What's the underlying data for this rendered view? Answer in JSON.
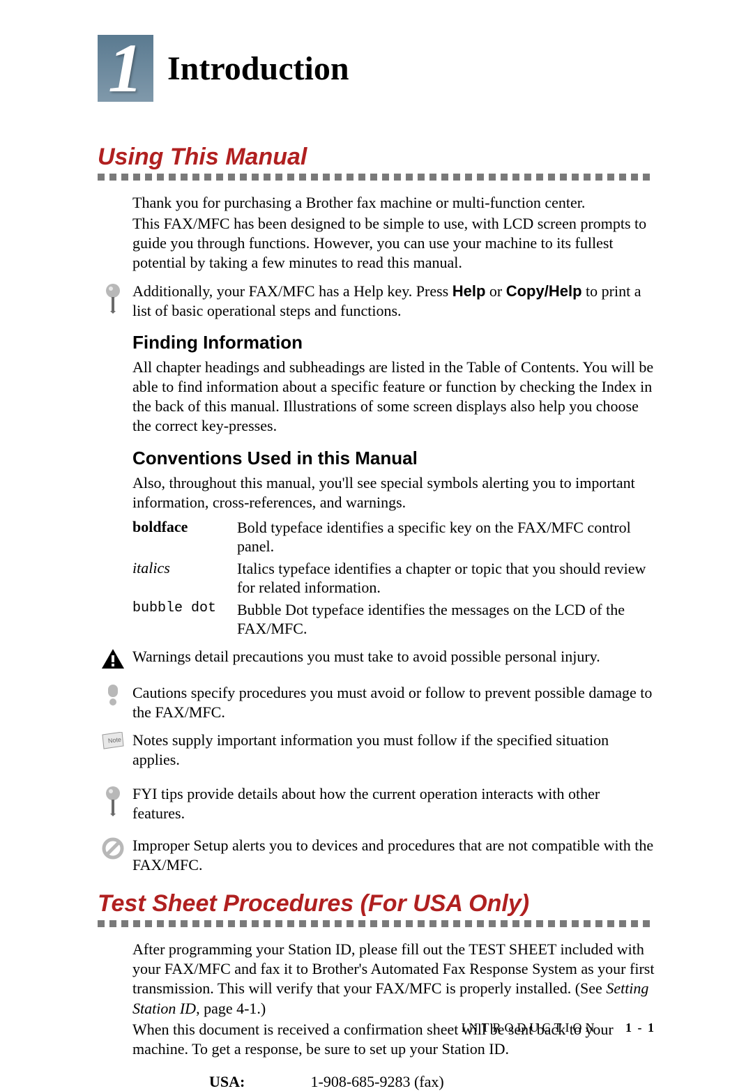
{
  "colors": {
    "section_heading": "#b02020",
    "badge_gradient_top": "#5a7a90",
    "badge_gradient_bottom": "#8099ab",
    "dot_rule": "#7a7a7a",
    "body_text": "#000000",
    "background": "#ffffff"
  },
  "typography": {
    "body_family": "Times New Roman",
    "heading_family": "Arial",
    "mono_family": "Courier New",
    "chapter_title_size": 48,
    "section_heading_size": 34,
    "subheading_size": 26,
    "body_size": 22
  },
  "chapter": {
    "number": "1",
    "title": "Introduction"
  },
  "section1": {
    "heading": "Using This Manual",
    "p1_a": "Thank you for purchasing a Brother fax machine or multi-function center.",
    "p1_b": "This FAX/MFC has been designed to be simple to use, with LCD screen prompts to guide you through functions. However, you can use your machine to its fullest potential by taking a few minutes to read this manual.",
    "fyi_a": "Additionally, your FAX/MFC has a Help key. Press ",
    "fyi_b1": "Help",
    "fyi_c": " or ",
    "fyi_b2": "Copy/Help",
    "fyi_d": " to print a list of basic operational steps and functions.",
    "sub1": {
      "heading": "Finding Information",
      "text": "All chapter headings and subheadings are listed in the Table of Contents. You will be able to find information about a specific feature or function by checking the Index in the back of this manual.  Illustrations of some screen displays also help you choose the correct key-presses."
    },
    "sub2": {
      "heading": "Conventions Used in this Manual",
      "intro": "Also, throughout this manual, you'll see special symbols alerting you to important information, cross-references, and warnings.",
      "rows": [
        {
          "term": "boldface",
          "desc": "Bold typeface identifies a specific key on the FAX/MFC control panel."
        },
        {
          "term": "italics",
          "desc": "Italics typeface identifies a chapter or topic that you should review for related information."
        },
        {
          "term": "bubble dot",
          "desc": "Bubble Dot typeface identifies the messages on the LCD of the FAX/MFC."
        }
      ],
      "warning": "Warnings detail precautions you must take to avoid possible personal injury.",
      "caution": "Cautions specify procedures you must avoid or follow to prevent possible damage to the FAX/MFC.",
      "note": "Notes supply important information you must follow if the specified situation applies.",
      "fyi2": "FYI tips provide details about how the current operation interacts with other features.",
      "improper": "Improper Setup alerts you to devices and procedures that are not compatible with the FAX/MFC."
    }
  },
  "section2": {
    "heading": "Test Sheet Procedures (For USA Only)",
    "p1_a": "After programming your Station ID, please fill out the TEST SHEET included with your FAX/MFC and fax it to Brother's Automated Fax Response System as your first transmission. This will verify that your FAX/MFC is properly installed. (See ",
    "p1_ref": "Setting Station ID",
    "p1_b": ", page 4-1.)",
    "p2": "When this document is received a confirmation sheet will be sent back to your machine. To get a response, be sure to set up your Station ID.",
    "phone_label": "USA:",
    "phone_number": "1-908-685-9283 (fax)"
  },
  "footer": {
    "text": "INTRODUCTION",
    "page": "1 - 1"
  }
}
